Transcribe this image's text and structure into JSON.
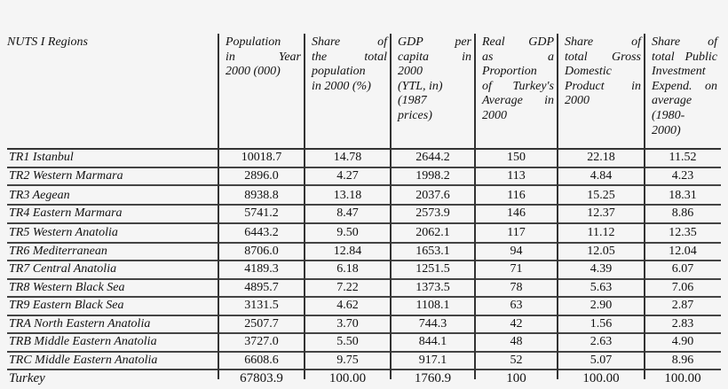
{
  "table": {
    "headers": [
      {
        "lines": [
          "NUTS I Regions"
        ]
      },
      {
        "lines": [
          "Population",
          "in Year",
          "2000 (000)"
        ]
      },
      {
        "lines": [
          "Share of",
          "the total",
          "population",
          "in 2000 (%)"
        ]
      },
      {
        "lines": [
          "GDP per",
          "capita in",
          "2000",
          "(YTL, in)",
          "(1987",
          "prices)"
        ]
      },
      {
        "lines": [
          "Real GDP",
          "as a",
          "Proportion",
          "of Turkey's",
          "Average in",
          "2000"
        ]
      },
      {
        "lines": [
          "Share of",
          "total Gross",
          "Domestic",
          "Product in",
          "2000"
        ]
      },
      {
        "lines": [
          "Share of",
          "total Public",
          "Investment",
          "Expend. on",
          "average",
          "(1980-",
          "2000)"
        ]
      }
    ],
    "rows": [
      [
        "TR1 Istanbul",
        "10018.7",
        "14.78",
        "2644.2",
        "150",
        "22.18",
        "11.52"
      ],
      [
        "TR2 Western Marmara",
        "2896.0",
        "4.27",
        "1998.2",
        "113",
        "4.84",
        "4.23"
      ],
      [
        "TR3 Aegean",
        "8938.8",
        "13.18",
        "2037.6",
        "116",
        "15.25",
        "18.31"
      ],
      [
        "TR4 Eastern Marmara",
        "5741.2",
        "8.47",
        "2573.9",
        "146",
        "12.37",
        "8.86"
      ],
      [
        "TR5 Western Anatolia",
        "6443.2",
        "9.50",
        "2062.1",
        "117",
        "11.12",
        "12.35"
      ],
      [
        "TR6 Mediterranean",
        "8706.0",
        "12.84",
        "1653.1",
        "94",
        "12.05",
        "12.04"
      ],
      [
        "TR7 Central Anatolia",
        "4189.3",
        "6.18",
        "1251.5",
        "71",
        "4.39",
        "6.07"
      ],
      [
        "TR8 Western Black Sea",
        "4895.7",
        "7.22",
        "1373.5",
        "78",
        "5.63",
        "7.06"
      ],
      [
        "TR9 Eastern Black Sea",
        "3131.5",
        "4.62",
        "1108.1",
        "63",
        "2.90",
        "2.87"
      ],
      [
        "TRA North Eastern Anatolia",
        "2507.7",
        "3.70",
        "744.3",
        "42",
        "1.56",
        "2.83"
      ],
      [
        "TRB Middle Eastern Anatolia",
        "3727.0",
        "5.50",
        "844.1",
        "48",
        "2.63",
        "4.90"
      ],
      [
        "TRC Middle Eastern Anatolia",
        "6608.6",
        "9.75",
        "917.1",
        "52",
        "5.07",
        "8.96"
      ],
      [
        "Turkey",
        "67803.9",
        "100.00",
        "1760.9",
        "100",
        "100.00",
        "100.00"
      ]
    ]
  }
}
